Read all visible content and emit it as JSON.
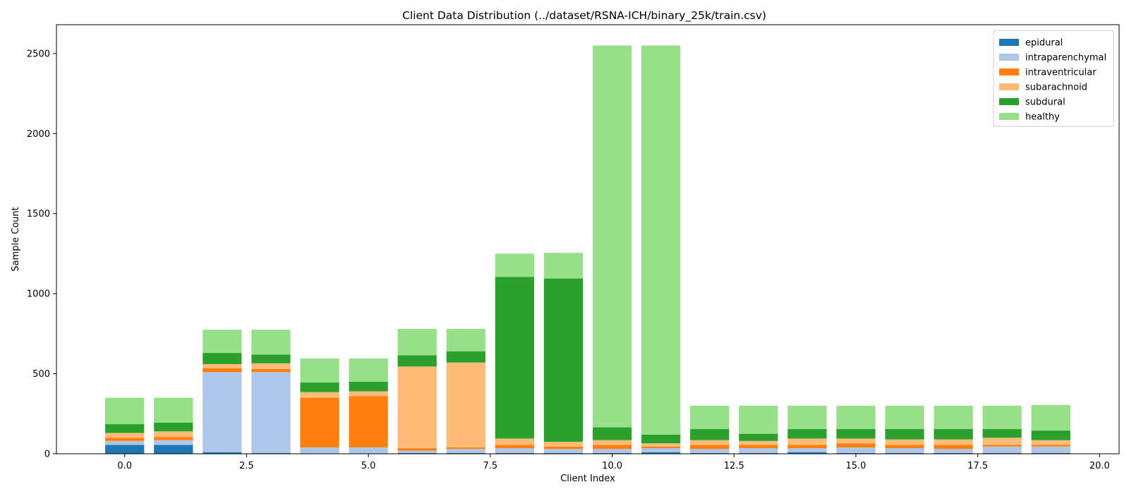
{
  "chart_data": {
    "type": "bar",
    "stacked": true,
    "title": "Client Data Distribution (../dataset/RSNA-ICH/binary_25k/train.csv)",
    "xlabel": "Client Index",
    "ylabel": "Sample Count",
    "xlim": [
      -1.4,
      20.4
    ],
    "ylim": [
      0,
      2680
    ],
    "xticks": [
      "0.0",
      "2.5",
      "5.0",
      "7.5",
      "10.0",
      "12.5",
      "15.0",
      "17.5",
      "20.0"
    ],
    "xtick_values": [
      0,
      2.5,
      5,
      7.5,
      10,
      12.5,
      15,
      17.5,
      20
    ],
    "yticks": [
      "0",
      "500",
      "1000",
      "1500",
      "2000",
      "2500"
    ],
    "ytick_values": [
      0,
      500,
      1000,
      1500,
      2000,
      2500
    ],
    "grid": false,
    "legend_position": "top-right",
    "x": [
      0,
      1,
      2,
      3,
      4,
      5,
      6,
      7,
      8,
      9,
      10,
      11,
      12,
      13,
      14,
      15,
      16,
      17,
      18,
      19
    ],
    "series": [
      {
        "name": "epidural",
        "color": "#1f77b4",
        "values": [
          55,
          55,
          10,
          5,
          2,
          2,
          5,
          5,
          5,
          5,
          5,
          10,
          5,
          5,
          10,
          5,
          5,
          5,
          5,
          5
        ]
      },
      {
        "name": "intraparenchymal",
        "color": "#aec7e8",
        "values": [
          25,
          30,
          500,
          505,
          38,
          38,
          15,
          25,
          30,
          25,
          25,
          25,
          25,
          30,
          25,
          35,
          30,
          25,
          40,
          40
        ]
      },
      {
        "name": "intraventricular",
        "color": "#ff7f0e",
        "values": [
          20,
          20,
          25,
          20,
          310,
          320,
          15,
          10,
          20,
          15,
          25,
          10,
          25,
          20,
          20,
          25,
          20,
          25,
          10,
          10
        ]
      },
      {
        "name": "subarachnoid",
        "color": "#ffbb78",
        "values": [
          30,
          35,
          25,
          35,
          35,
          30,
          510,
          530,
          40,
          30,
          30,
          20,
          30,
          25,
          40,
          30,
          35,
          35,
          45,
          30
        ]
      },
      {
        "name": "subdural",
        "color": "#2ca02c",
        "values": [
          55,
          55,
          70,
          55,
          60,
          60,
          70,
          70,
          1010,
          1020,
          80,
          55,
          70,
          45,
          60,
          60,
          65,
          65,
          55,
          60
        ]
      },
      {
        "name": "healthy",
        "color": "#98df8a",
        "values": [
          165,
          155,
          145,
          155,
          150,
          145,
          165,
          140,
          145,
          160,
          2385,
          2430,
          145,
          175,
          145,
          145,
          145,
          145,
          145,
          160
        ]
      }
    ]
  }
}
